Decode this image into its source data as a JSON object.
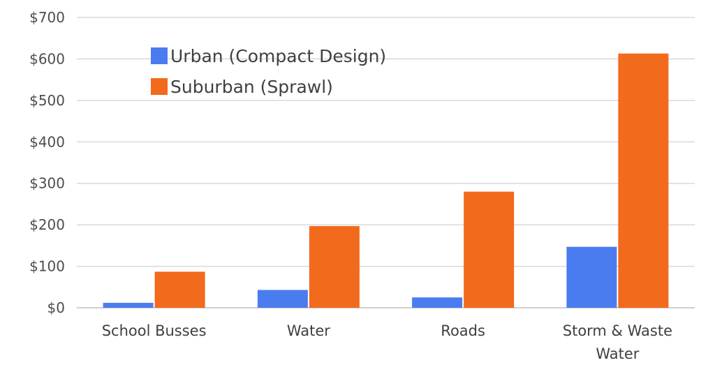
{
  "chart_data": {
    "type": "bar",
    "title": "",
    "xlabel": "",
    "ylabel": "",
    "categories": [
      [
        "School Busses"
      ],
      [
        "Water"
      ],
      [
        "Roads"
      ],
      [
        "Storm & Waste",
        "Water"
      ]
    ],
    "series": [
      {
        "name": "Urban (Compact Design)",
        "color": "#4a7cf0",
        "values": [
          12,
          43,
          25,
          147
        ]
      },
      {
        "name": "Suburban (Sprawl)",
        "color": "#f26a1b",
        "values": [
          87,
          197,
          280,
          613
        ]
      }
    ],
    "ylim": [
      0,
      700
    ],
    "yticks": [
      0,
      100,
      200,
      300,
      400,
      500,
      600,
      700
    ],
    "ytick_labels": [
      "$0",
      "$100",
      "$200",
      "$300",
      "$400",
      "$500",
      "$600",
      "$700"
    ],
    "grid": true,
    "legend": "top-left"
  }
}
